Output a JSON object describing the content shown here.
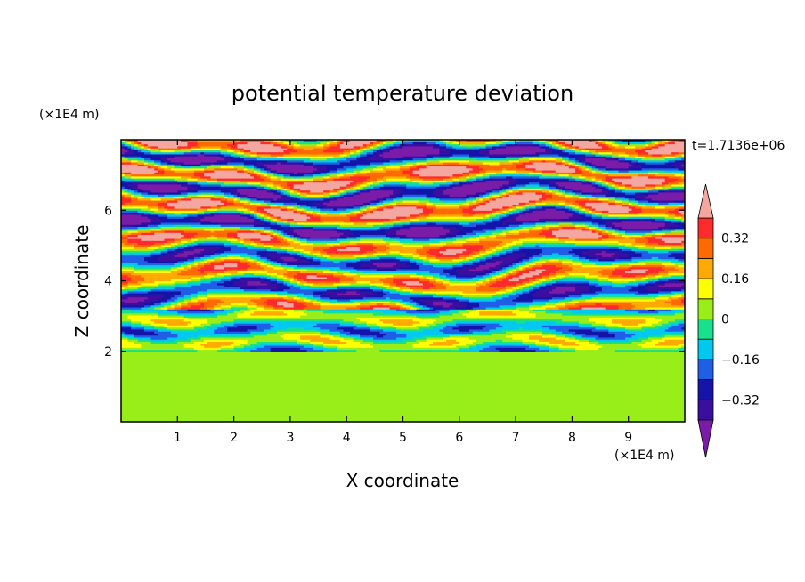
{
  "chart_data": {
    "type": "heatmap",
    "title": "potential temperature deviation",
    "xlabel": "X coordinate",
    "ylabel": "Z coordinate",
    "x_unit": "(×1E4 m)",
    "y_unit": "(×1E4 m)",
    "time_label": "t=1.7136e+06",
    "xlim": [
      0,
      10
    ],
    "ylim": [
      0,
      8
    ],
    "x_ticks": [
      "1",
      "2",
      "3",
      "4",
      "5",
      "6",
      "7",
      "8",
      "9"
    ],
    "y_ticks": [
      "2",
      "4",
      "6"
    ],
    "colorbar": {
      "labels": [
        "0.32",
        "0.16",
        "0",
        "−0.16",
        "−0.32"
      ],
      "label_values": [
        0.32,
        0.16,
        0,
        -0.16,
        -0.32
      ],
      "levels": [
        -0.4,
        -0.32,
        -0.24,
        -0.16,
        -0.08,
        0,
        0.08,
        0.16,
        0.24,
        0.32,
        0.4
      ],
      "colors_low_to_high": [
        "#7a1ca8",
        "#3a0fa0",
        "#1414a8",
        "#1f5fe6",
        "#00c8f0",
        "#18e08c",
        "#99ee1a",
        "#ffff00",
        "#ffaa00",
        "#ff6a00",
        "#ff2a2a",
        "#f4a6a0"
      ],
      "extend": "both"
    },
    "field_description_bands": [
      {
        "z_range": [
          0,
          2
        ],
        "dominant_values": [
          0,
          0.08
        ]
      },
      {
        "z_range": [
          2,
          3.2
        ],
        "dominant_values": [
          -0.16,
          0.08
        ]
      },
      {
        "z_range": [
          3.2,
          5.2
        ],
        "dominant_values": [
          -0.32,
          0.4
        ]
      },
      {
        "z_range": [
          5.2,
          8
        ],
        "dominant_values": [
          -0.4,
          0.4
        ]
      }
    ]
  }
}
